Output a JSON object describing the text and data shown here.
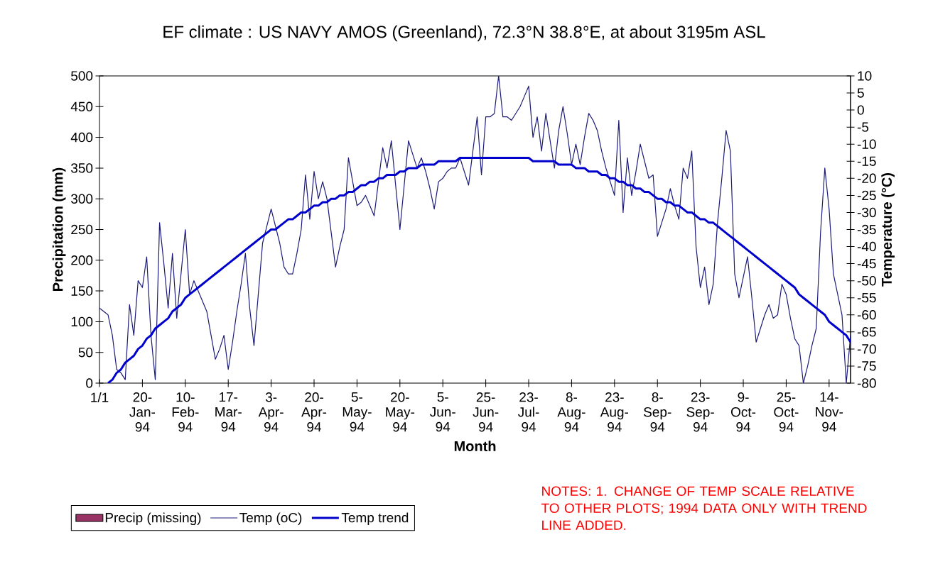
{
  "chart_data": {
    "type": "line",
    "title": "EF climate : US NAVY AMOS (Greenland), 72.3°N 38.8°E, at about 3195m ASL",
    "xlabel": "Month",
    "ylabel": "Precipitation (mm)",
    "y2label": "Temperature (°C)",
    "annotations": [
      "NOTES: 1. CHANGE OF TEMP SCALE RELATIVE TO OTHER PLOTS; 1994 DATA ONLY WITH TREND LINE ADDED."
    ],
    "categories": [
      "1/1",
      null,
      null,
      null,
      null,
      null,
      null,
      null,
      null,
      null,
      "20-Jan-94",
      null,
      null,
      null,
      null,
      null,
      null,
      null,
      null,
      null,
      "10-Feb-94",
      null,
      null,
      null,
      null,
      null,
      null,
      null,
      null,
      null,
      "17-Mar-94",
      null,
      null,
      null,
      null,
      null,
      null,
      null,
      null,
      null,
      "3-Apr-94",
      null,
      null,
      null,
      null,
      null,
      null,
      null,
      null,
      null,
      "20-Apr-94",
      null,
      null,
      null,
      null,
      null,
      null,
      null,
      null,
      null,
      "5-May-94",
      null,
      null,
      null,
      null,
      null,
      null,
      null,
      null,
      null,
      "20-May-94",
      null,
      null,
      null,
      null,
      null,
      null,
      null,
      null,
      null,
      "5-Jun-94",
      null,
      null,
      null,
      null,
      null,
      null,
      null,
      null,
      null,
      "25-Jun-94",
      null,
      null,
      null,
      null,
      null,
      null,
      null,
      null,
      null,
      "23-Jul-94",
      null,
      null,
      null,
      null,
      null,
      null,
      null,
      null,
      null,
      "8-Aug-94",
      null,
      null,
      null,
      null,
      null,
      null,
      null,
      null,
      null,
      "23-Aug-94",
      null,
      null,
      null,
      null,
      null,
      null,
      null,
      null,
      null,
      "8-Sep-94",
      null,
      null,
      null,
      null,
      null,
      null,
      null,
      null,
      null,
      "23-Sep-94",
      null,
      null,
      null,
      null,
      null,
      null,
      null,
      null,
      null,
      "9-Oct-94",
      null,
      null,
      null,
      null,
      null,
      null,
      null,
      null,
      null,
      "25-Oct-94",
      null,
      null,
      null,
      null,
      null,
      null,
      null,
      null,
      null,
      "14-Nov-94",
      null,
      null,
      null,
      null,
      null
    ],
    "ylim": [
      0,
      500
    ],
    "yticks": [
      0,
      50,
      100,
      150,
      200,
      250,
      300,
      350,
      400,
      450,
      500
    ],
    "y2lim": [
      -80,
      10
    ],
    "y2ticks": [
      -80,
      -75,
      -70,
      -65,
      -60,
      -55,
      -50,
      -45,
      -40,
      -35,
      -30,
      -25,
      -20,
      -15,
      -10,
      -5,
      0,
      5,
      10
    ],
    "legend": "bottom left",
    "series": [
      {
        "name": "Precip (missing)",
        "type": "bar",
        "color": "#993366",
        "values": [
          null,
          null,
          null,
          null,
          null,
          null,
          null,
          null,
          null,
          null,
          null,
          null,
          null,
          null,
          null,
          null,
          null,
          null,
          null,
          null,
          null,
          null,
          null,
          null,
          null,
          null,
          null,
          null,
          null,
          null,
          null,
          null,
          null,
          null,
          null,
          null,
          null,
          null,
          null,
          null,
          null,
          null,
          null,
          null,
          null,
          null,
          null,
          null,
          null,
          null,
          null,
          null,
          null,
          null,
          null,
          null,
          null,
          null,
          null,
          null,
          null,
          null,
          null,
          null,
          null,
          null,
          null,
          null,
          null,
          null,
          null,
          null,
          null,
          null,
          null,
          null,
          null,
          null,
          null,
          null,
          null,
          null,
          null,
          null,
          null,
          null,
          null,
          null,
          null,
          null,
          null,
          null,
          null,
          null,
          null,
          null,
          null,
          null,
          null,
          null,
          null,
          null,
          null,
          null,
          null,
          null,
          null,
          null,
          null,
          null,
          null,
          null,
          null,
          null,
          null,
          null,
          null,
          null,
          null,
          null,
          null,
          null,
          null,
          null,
          null,
          null,
          null,
          null,
          null,
          null,
          null,
          null,
          null,
          null,
          null,
          null,
          null,
          null,
          null,
          null,
          null,
          null,
          null,
          null,
          null,
          null,
          null,
          null,
          null,
          null,
          null,
          null,
          null,
          null,
          null,
          null,
          null,
          null,
          null,
          null,
          null,
          null,
          null,
          null,
          null,
          null,
          null,
          null,
          null,
          null,
          null,
          null,
          null,
          null,
          null,
          null
        ]
      },
      {
        "name": "Temp (oC)",
        "axis": "y2",
        "color": "#1c1c78",
        "values": [
          -58,
          -59,
          -60,
          -66,
          -76,
          -77,
          -79,
          -57,
          -66,
          -50,
          -52,
          -43,
          -66,
          -79,
          -33,
          -45,
          -58,
          -42,
          -61,
          -48,
          -35,
          -54,
          -50,
          -53,
          -56,
          -59,
          -66,
          -73,
          -70,
          -66,
          -76,
          -68,
          -59,
          -51,
          -42,
          -58,
          -69,
          -54,
          -39,
          -34,
          -29,
          -34,
          -39,
          -46,
          -48,
          -48,
          -42,
          -35,
          -19,
          -32,
          -18,
          -26,
          -21,
          -26,
          -36,
          -46,
          -40,
          -35,
          -14,
          -21,
          -28,
          -27,
          -25,
          -28,
          -31,
          -21,
          -11,
          -17,
          -9,
          -22,
          -35,
          -22,
          -9,
          -13,
          -17,
          -14,
          -18,
          -23,
          -29,
          -21,
          -20,
          -18,
          -17,
          -17,
          -14,
          -18,
          -22,
          -12,
          -2,
          -19,
          -2,
          -2,
          -1,
          10,
          -2,
          -2,
          -3,
          -1,
          1,
          4,
          7,
          -8,
          -2,
          -12,
          -1,
          -9,
          -17,
          -6,
          1,
          -7,
          -16,
          -10,
          -16,
          -8,
          -1,
          -3,
          -6,
          -12,
          -17,
          -21,
          -25,
          -3,
          -30,
          -14,
          -25,
          -18,
          -10,
          -15,
          -20,
          -19,
          -37,
          -33,
          -29,
          -23,
          -28,
          -32,
          -17,
          -20,
          -12,
          -40,
          -52,
          -46,
          -57,
          -51,
          -33,
          -20,
          -6,
          -12,
          -48,
          -55,
          -49,
          -43,
          -55,
          -68,
          -64,
          -60,
          -57,
          -61,
          -60,
          -51,
          -54,
          -61,
          -67,
          -69,
          -80,
          -75,
          -69,
          -64,
          -36,
          -17,
          -29,
          -48,
          -54,
          -60,
          -80,
          -66
        ]
      },
      {
        "name": "Temp trend",
        "axis": "y2",
        "color": "#0000cc",
        "values": [
          null,
          null,
          -80,
          -79,
          -77,
          -76,
          -74,
          -73,
          -72,
          -70,
          -69,
          -67,
          -66,
          -64,
          -63,
          -62,
          -61,
          -59,
          -58,
          -57,
          -55,
          -54,
          -53,
          -52,
          -51,
          -50,
          -49,
          -48,
          -47,
          -46,
          -45,
          -44,
          -43,
          -42,
          -41,
          -40,
          -39,
          -38,
          -37,
          -36,
          -35,
          -35,
          -34,
          -33,
          -32,
          -32,
          -31,
          -30,
          -30,
          -29,
          -28,
          -28,
          -27,
          -27,
          -26,
          -26,
          -25,
          -25,
          -24,
          -24,
          -23,
          -22,
          -22,
          -21,
          -21,
          -20,
          -20,
          -19,
          -19,
          -19,
          -18,
          -18,
          -17,
          -17,
          -17,
          -16,
          -16,
          -16,
          -16,
          -15,
          -15,
          -15,
          -15,
          -15,
          -14,
          -14,
          -14,
          -14,
          -14,
          -14,
          -14,
          -14,
          -14,
          -14,
          -14,
          -14,
          -14,
          -14,
          -14,
          -14,
          -14,
          -15,
          -15,
          -15,
          -15,
          -15,
          -15,
          -16,
          -16,
          -16,
          -16,
          -17,
          -17,
          -17,
          -18,
          -18,
          -18,
          -19,
          -19,
          -20,
          -20,
          -21,
          -21,
          -22,
          -22,
          -23,
          -23,
          -24,
          -24,
          -25,
          -26,
          -26,
          -27,
          -27,
          -28,
          -28,
          -29,
          -30,
          -30,
          -31,
          -32,
          -32,
          -33,
          -33,
          -34,
          -35,
          -36,
          -37,
          -38,
          -39,
          -40,
          -41,
          -42,
          -43,
          -44,
          -45,
          -46,
          -47,
          -48,
          -49,
          -50,
          -51,
          -52,
          -54,
          -55,
          -56,
          -57,
          -58,
          -59,
          -60,
          -62,
          -63,
          -64,
          -65,
          -66,
          -68
        ]
      }
    ]
  }
}
